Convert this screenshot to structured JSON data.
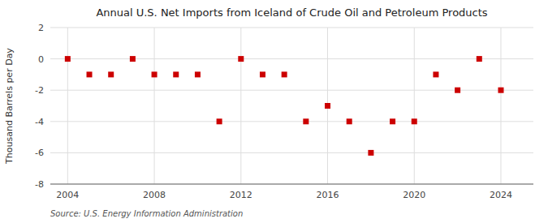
{
  "chart_data": {
    "type": "scatter",
    "title": "Annual U.S. Net Imports from Iceland of Crude Oil and Petroleum Products",
    "y_label": "Thousand Barrels per Day",
    "source": "Source: U.S. Energy Information Administration",
    "x": [
      2004,
      2005,
      2006,
      2007,
      2008,
      2009,
      2010,
      2011,
      2012,
      2013,
      2014,
      2015,
      2016,
      2017,
      2018,
      2019,
      2020,
      2021,
      2022,
      2023,
      2024
    ],
    "values": [
      0,
      -1,
      -1,
      0,
      -1,
      -1,
      -1,
      -4,
      0,
      -1,
      -1,
      -4,
      -3,
      -4,
      -6,
      -4,
      -4,
      -1,
      -2,
      0,
      -2
    ],
    "color": "#cc0000",
    "marker": "square",
    "xlim": [
      2003.2,
      2025.5
    ],
    "xticks": [
      2004,
      2008,
      2012,
      2016,
      2020,
      2024
    ],
    "ylim": [
      -8,
      2
    ],
    "yticks": [
      -8,
      -6,
      -4,
      -2,
      0,
      2
    ],
    "grid": true
  }
}
